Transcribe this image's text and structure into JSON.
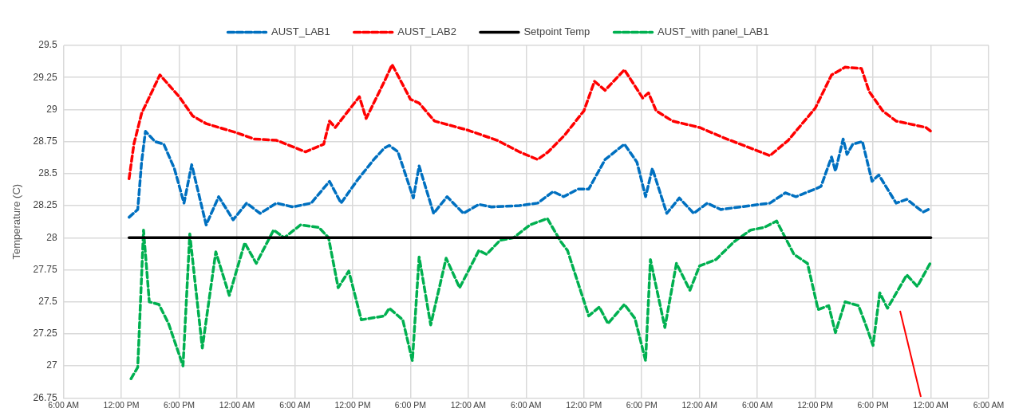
{
  "chart_data": {
    "type": "line",
    "ylabel": "Temperature (C)",
    "legend": "top",
    "grid": true,
    "marker": "none",
    "xlim": [
      "--01-01T06:00",
      "--01-05T06:00"
    ],
    "xticks": [
      {
        "value": "--01-01T06:00",
        "label": "6:00 AM"
      },
      {
        "value": "--01-01T12:00",
        "label": "12:00 PM"
      },
      {
        "value": "--01-01T18:00",
        "label": "6:00 PM"
      },
      {
        "value": "--01-02T00:00",
        "label": "12:00 AM"
      },
      {
        "value": "--01-02T06:00",
        "label": "6:00 AM"
      },
      {
        "value": "--01-02T12:00",
        "label": "12:00 PM"
      },
      {
        "value": "--01-02T18:00",
        "label": "6:00 PM"
      },
      {
        "value": "--01-03T00:00",
        "label": "12:00 AM"
      },
      {
        "value": "--01-03T06:00",
        "label": "6:00 AM"
      },
      {
        "value": "--01-03T12:00",
        "label": "12:00 PM"
      },
      {
        "value": "--01-03T18:00",
        "label": "6:00 PM"
      },
      {
        "value": "--01-04T00:00",
        "label": "12:00 AM"
      },
      {
        "value": "--01-04T06:00",
        "label": "6:00 AM"
      },
      {
        "value": "--01-04T12:00",
        "label": "12:00 PM"
      },
      {
        "value": "--01-04T18:00",
        "label": "6:00 PM"
      },
      {
        "value": "--01-05T00:00",
        "label": "12:00 AM"
      },
      {
        "value": "--01-05T06:00",
        "label": "6:00 AM"
      }
    ],
    "ylim": [
      26.75,
      29.5
    ],
    "yticks": [
      26.75,
      27,
      27.25,
      27.5,
      27.75,
      28,
      28.25,
      28.5,
      28.75,
      29,
      29.25,
      29.5
    ],
    "series": [
      {
        "name": "AUST_LAB1",
        "color": "#0070c0",
        "line_style": "dashed",
        "x": [
          "--01-01T12:48",
          "--01-01T13:42",
          "--01-01T14:06",
          "--01-01T14:30",
          "--01-01T15:30",
          "--01-01T16:24",
          "--01-01T17:30",
          "--01-01T18:30",
          "--01-01T19:18",
          "--01-01T20:48",
          "--01-01T22:06",
          "--01-01T23:36",
          "--01-02T01:00",
          "--01-02T02:24",
          "--01-02T04:06",
          "--01-02T05:48",
          "--01-02T07:42",
          "--01-02T09:36",
          "--01-02T10:48",
          "--01-02T12:30",
          "--01-02T14:12",
          "--01-02T15:18",
          "--01-02T15:48",
          "--01-02T16:42",
          "--01-02T18:18",
          "--01-02T18:54",
          "--01-02T20:24",
          "--01-02T21:48",
          "--01-02T23:30",
          "--01-03T01:06",
          "--01-03T02:24",
          "--01-03T05:18",
          "--01-03T07:12",
          "--01-03T08:48",
          "--01-03T09:54",
          "--01-03T11:24",
          "--01-03T12:30",
          "--01-03T14:12",
          "--01-03T16:12",
          "--01-03T17:30",
          "--01-03T18:24",
          "--01-03T19:06",
          "--01-03T20:36",
          "--01-03T21:54",
          "--01-03T23:24",
          "--01-04T00:48",
          "--01-04T02:12",
          "--01-04T04:12",
          "--01-04T07:18",
          "--01-04T08:54",
          "--01-04T10:00",
          "--01-04T12:00",
          "--01-04T12:36",
          "--01-04T13:42",
          "--01-04T14:06",
          "--01-04T14:54",
          "--01-04T15:18",
          "--01-04T15:54",
          "--01-04T16:54",
          "--01-04T17:54",
          "--01-04T18:36",
          "--01-04T20:24",
          "--01-04T21:30",
          "--01-04T23:12",
          "--01-05T00:00"
        ],
        "values": [
          28.16,
          28.22,
          28.59,
          28.83,
          28.75,
          28.73,
          28.54,
          28.27,
          28.57,
          28.1,
          28.32,
          28.14,
          28.27,
          28.19,
          28.27,
          28.24,
          28.27,
          28.44,
          28.27,
          28.45,
          28.61,
          28.7,
          28.72,
          28.67,
          28.31,
          28.56,
          28.19,
          28.32,
          28.19,
          28.26,
          28.24,
          28.25,
          28.27,
          28.36,
          28.32,
          28.38,
          28.38,
          28.61,
          28.73,
          28.59,
          28.32,
          28.54,
          28.19,
          28.31,
          28.19,
          28.27,
          28.22,
          28.24,
          28.27,
          28.35,
          28.32,
          28.38,
          28.4,
          28.63,
          28.52,
          28.77,
          28.65,
          28.73,
          28.75,
          28.44,
          28.49,
          28.27,
          28.3,
          28.2,
          28.23
        ]
      },
      {
        "name": "AUST_LAB2",
        "color": "#ff0000",
        "line_style": "dashed",
        "x": [
          "--01-01T12:48",
          "--01-01T13:18",
          "--01-01T14:06",
          "--01-01T16:00",
          "--01-01T18:00",
          "--01-01T19:24",
          "--01-01T20:48",
          "--01-01T23:54",
          "--01-02T01:48",
          "--01-02T04:06",
          "--01-02T07:06",
          "--01-02T09:00",
          "--01-02T09:36",
          "--01-02T10:12",
          "--01-02T12:42",
          "--01-02T13:24",
          "--01-02T15:18",
          "--01-02T16:06",
          "--01-02T18:00",
          "--01-02T18:54",
          "--01-02T20:30",
          "--01-02T23:54",
          "--01-03T03:00",
          "--01-03T05:18",
          "--01-03T07:12",
          "--01-03T08:18",
          "--01-03T10:00",
          "--01-03T12:00",
          "--01-03T13:06",
          "--01-03T14:12",
          "--01-03T16:12",
          "--01-03T18:06",
          "--01-03T18:42",
          "--01-03T19:30",
          "--01-03T21:12",
          "--01-04T00:00",
          "--01-04T02:30",
          "--01-04T07:18",
          "--01-04T09:12",
          "--01-04T12:00",
          "--01-04T13:42",
          "--01-04T15:06",
          "--01-04T16:48",
          "--01-04T17:36",
          "--01-04T19:00",
          "--01-04T20:24",
          "--01-04T23:30",
          "--01-05T00:00"
        ],
        "values": [
          28.46,
          28.73,
          28.97,
          29.27,
          29.1,
          28.95,
          28.89,
          28.82,
          28.77,
          28.76,
          28.67,
          28.73,
          28.91,
          28.86,
          29.1,
          28.93,
          29.22,
          29.35,
          29.08,
          29.05,
          28.91,
          28.84,
          28.76,
          28.67,
          28.61,
          28.67,
          28.8,
          28.99,
          29.22,
          29.15,
          29.31,
          29.09,
          29.13,
          28.99,
          28.91,
          28.86,
          28.78,
          28.64,
          28.76,
          29.01,
          29.27,
          29.33,
          29.32,
          29.14,
          28.99,
          28.91,
          28.86,
          28.83
        ]
      },
      {
        "name": "Setpoint Temp",
        "color": "#000000",
        "line_style": "solid",
        "x": [
          "--01-01T12:48",
          "--01-05T00:00"
        ],
        "values": [
          28,
          28
        ]
      },
      {
        "name": "AUST_with panel_LAB1",
        "color": "#00b050",
        "line_style": "dashed",
        "x": [
          "--01-01T13:00",
          "--01-01T13:42",
          "--01-01T14:18",
          "--01-01T14:54",
          "--01-01T15:54",
          "--01-01T16:54",
          "--01-01T18:24",
          "--01-01T19:06",
          "--01-01T20:24",
          "--01-01T21:48",
          "--01-01T23:12",
          "--01-02T00:48",
          "--01-02T02:00",
          "--01-02T03:48",
          "--01-02T04:54",
          "--01-02T06:36",
          "--01-02T08:30",
          "--01-02T09:30",
          "--01-02T10:30",
          "--01-02T11:36",
          "--01-02T12:54",
          "--01-02T15:18",
          "--01-02T15:48",
          "--01-02T17:12",
          "--01-02T18:12",
          "--01-02T18:54",
          "--01-02T20:06",
          "--01-02T21:42",
          "--01-02T23:06",
          "--01-03T01:06",
          "--01-03T01:54",
          "--01-03T03:18",
          "--01-03T04:42",
          "--01-03T06:24",
          "--01-03T08:12",
          "--01-03T09:36",
          "--01-03T10:18",
          "--01-03T12:30",
          "--01-03T13:36",
          "--01-03T14:30",
          "--01-03T16:12",
          "--01-03T17:18",
          "--01-03T18:24",
          "--01-03T18:54",
          "--01-03T20:24",
          "--01-03T21:36",
          "--01-03T23:00",
          "--01-04T00:00",
          "--01-04T01:42",
          "--01-04T03:36",
          "--01-04T05:18",
          "--01-04T06:42",
          "--01-04T08:00",
          "--01-04T09:48",
          "--01-04T11:12",
          "--01-04T12:18",
          "--01-04T13:24",
          "--01-04T14:06",
          "--01-04T15:06",
          "--01-04T16:30",
          "--01-04T17:18",
          "--01-04T18:00",
          "--01-04T18:42",
          "--01-04T19:30",
          "--01-04T21:30",
          "--01-04T22:36",
          "--01-05T00:00"
        ],
        "values": [
          26.9,
          26.99,
          28.06,
          27.5,
          27.48,
          27.33,
          27,
          28.03,
          27.14,
          27.89,
          27.55,
          27.96,
          27.8,
          28.06,
          28,
          28.1,
          28.08,
          28,
          27.61,
          27.74,
          27.36,
          27.39,
          27.45,
          27.36,
          27.04,
          27.85,
          27.32,
          27.84,
          27.61,
          27.9,
          27.87,
          27.98,
          28,
          28.1,
          28.15,
          27.97,
          27.9,
          27.39,
          27.46,
          27.33,
          27.48,
          27.37,
          27.04,
          27.83,
          27.3,
          27.8,
          27.59,
          27.78,
          27.83,
          27.97,
          28.06,
          28.08,
          28.13,
          27.87,
          27.8,
          27.44,
          27.47,
          27.26,
          27.5,
          27.47,
          27.31,
          27.16,
          27.57,
          27.45,
          27.71,
          27.62,
          27.81
        ]
      }
    ]
  }
}
